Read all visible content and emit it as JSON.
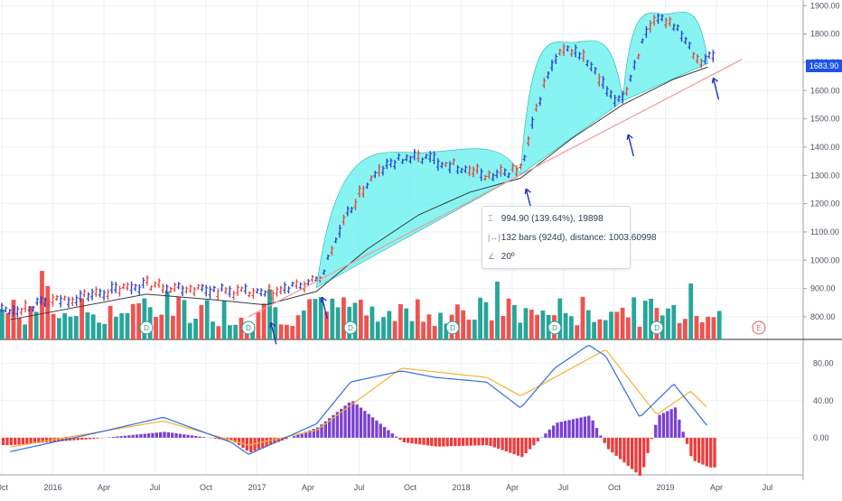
{
  "chart_data": [
    {
      "type": "candlestick",
      "title": "",
      "price_axis": {
        "ticks": [
          "1900.00",
          "1800.00",
          "1700.00",
          "1600.00",
          "1500.00",
          "1400.00",
          "1300.00",
          "1200.00",
          "1100.00",
          "1000.00",
          "900.00",
          "800.00"
        ],
        "range": [
          720,
          1920
        ]
      },
      "last_price": "1683.90",
      "time_axis": {
        "labels": [
          "Oct",
          "2016",
          "Apr",
          "Jul",
          "Oct",
          "2017",
          "Apr",
          "Jul",
          "Oct",
          "2018",
          "Apr",
          "Jul",
          "Oct",
          "2019",
          "Apr",
          "Jul"
        ]
      },
      "moving_average_points": [
        {
          "x": "2015-10",
          "y": 790
        },
        {
          "x": "2016-06",
          "y": 880
        },
        {
          "x": "2016-10",
          "y": 860
        },
        {
          "x": "2017-01",
          "y": 842
        },
        {
          "x": "2017-04",
          "y": 890
        },
        {
          "x": "2017-07",
          "y": 1040
        },
        {
          "x": "2017-10",
          "y": 1160
        },
        {
          "x": "2018-01",
          "y": 1240
        },
        {
          "x": "2018-04",
          "y": 1290
        },
        {
          "x": "2018-07",
          "y": 1430
        },
        {
          "x": "2018-10",
          "y": 1550
        },
        {
          "x": "2019-01",
          "y": 1640
        },
        {
          "x": "2019-03",
          "y": 1683
        }
      ],
      "trendline": {
        "from": {
          "x": "2016-12",
          "y": 800
        },
        "to": {
          "x": "2019-05",
          "y": 1710
        }
      },
      "cup_shapes": [
        {
          "from": "2017-04",
          "to": "2018-04",
          "peak": 1380
        },
        {
          "from": "2018-04",
          "to": "2018-10",
          "peak": 1770
        },
        {
          "from": "2018-10",
          "to": "2019-03",
          "peak": 1870
        }
      ],
      "annotation_markers": [
        {
          "label": "D",
          "x": "2016-06"
        },
        {
          "label": "D",
          "x": "2016-12"
        },
        {
          "label": "D",
          "x": "2017-06"
        },
        {
          "label": "D",
          "x": "2017-12"
        },
        {
          "label": "D",
          "x": "2018-06"
        },
        {
          "label": "D",
          "x": "2018-12"
        },
        {
          "label": "E",
          "x": "2019-06"
        }
      ],
      "measure_tooltip": {
        "line1": "994.90 (139.64%), 19898",
        "line2": "132 bars (924d), distance: 1003.60998",
        "line3": "20º"
      },
      "colors": {
        "up": "#2f44c8",
        "down": "#e0483f",
        "volume_up": "#26a69a",
        "volume_down": "#ef5350",
        "cup_fill": "#5ff0ee",
        "ma": "#3a3a3a",
        "trend": "#f09a9a",
        "arrow": "#1f2fc4"
      }
    },
    {
      "type": "macd",
      "axis_ticks": [
        "80.00",
        "40.00",
        "0.00"
      ],
      "range": [
        -40,
        105
      ],
      "macd_line_points": [
        {
          "x": "2015-10",
          "y": -15
        },
        {
          "x": "2016-03",
          "y": 5
        },
        {
          "x": "2016-07",
          "y": 22
        },
        {
          "x": "2016-11",
          "y": -5
        },
        {
          "x": "2016-12",
          "y": -18
        },
        {
          "x": "2017-04",
          "y": 15
        },
        {
          "x": "2017-06",
          "y": 60
        },
        {
          "x": "2017-09",
          "y": 72
        },
        {
          "x": "2017-11",
          "y": 65
        },
        {
          "x": "2018-02",
          "y": 60
        },
        {
          "x": "2018-04",
          "y": 32
        },
        {
          "x": "2018-06",
          "y": 75
        },
        {
          "x": "2018-08",
          "y": 100
        },
        {
          "x": "2018-09",
          "y": 88
        },
        {
          "x": "2018-11",
          "y": 22
        },
        {
          "x": "2019-01",
          "y": 58
        },
        {
          "x": "2019-03",
          "y": 12
        }
      ],
      "signal_line_points": [
        {
          "x": "2015-10",
          "y": -10
        },
        {
          "x": "2016-07",
          "y": 18
        },
        {
          "x": "2016-12",
          "y": -8
        },
        {
          "x": "2017-04",
          "y": 8
        },
        {
          "x": "2017-09",
          "y": 75
        },
        {
          "x": "2018-02",
          "y": 65
        },
        {
          "x": "2018-04",
          "y": 45
        },
        {
          "x": "2018-09",
          "y": 95
        },
        {
          "x": "2018-12",
          "y": 25
        },
        {
          "x": "2019-02",
          "y": 50
        },
        {
          "x": "2019-03",
          "y": 32
        }
      ],
      "colors": {
        "macd": "#2f6fe0",
        "signal": "#f5b133",
        "hist_pos": "#7b3fd1",
        "hist_neg": "#ef3b3b"
      }
    }
  ],
  "ui": {
    "tooltip_icon1": "⌶",
    "tooltip_icon2": "|↔|",
    "tooltip_icon3": "∠"
  }
}
